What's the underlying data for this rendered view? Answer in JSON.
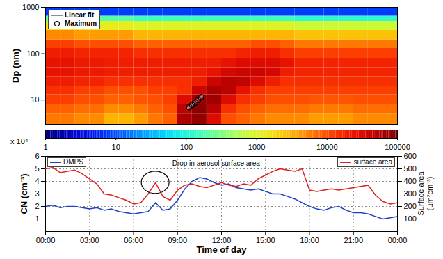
{
  "chart_data": [
    {
      "type": "heatmap",
      "ylabel": "Dp (nm)",
      "log": "y",
      "xlim": [
        0,
        24
      ],
      "ylim": [
        3,
        1000
      ],
      "yticks": [
        10,
        100,
        1000
      ],
      "tick_labels": "y",
      "legend": "top-left",
      "time_edges": [
        0,
        1,
        2,
        3,
        4,
        5,
        6,
        7,
        8,
        9,
        10,
        11,
        12,
        13,
        14,
        15,
        16,
        17,
        18,
        19,
        20,
        21,
        22,
        23,
        24
      ],
      "dp_edges": [
        3,
        5,
        8,
        13,
        20,
        32,
        50,
        80,
        130,
        200,
        320,
        500,
        650,
        1000
      ],
      "cells": [
        [
          6000,
          6000,
          5000,
          5000,
          3000,
          3000,
          4000,
          6000,
          8000,
          60000,
          80000,
          30000,
          10000,
          8000,
          6000,
          5000,
          5000,
          5000,
          4000,
          4000,
          4000,
          5000,
          5000,
          5000
        ],
        [
          8000,
          8000,
          7000,
          7000,
          5000,
          5000,
          6000,
          8000,
          10000,
          50000,
          90000,
          50000,
          15000,
          10000,
          8000,
          7000,
          7000,
          7000,
          6000,
          6000,
          6000,
          7000,
          7000,
          7000
        ],
        [
          12000,
          12000,
          10000,
          10000,
          8000,
          8000,
          9000,
          10000,
          12000,
          30000,
          70000,
          70000,
          30000,
          15000,
          12000,
          10000,
          10000,
          10000,
          9000,
          9000,
          9000,
          10000,
          10000,
          10000
        ],
        [
          15000,
          15000,
          12000,
          12000,
          10000,
          10000,
          10000,
          12000,
          12000,
          15000,
          40000,
          60000,
          50000,
          25000,
          15000,
          12000,
          12000,
          12000,
          12000,
          12000,
          12000,
          12000,
          12000,
          12000
        ],
        [
          20000,
          20000,
          18000,
          18000,
          15000,
          15000,
          15000,
          15000,
          15000,
          15000,
          20000,
          40000,
          50000,
          45000,
          30000,
          20000,
          15000,
          15000,
          15000,
          15000,
          15000,
          15000,
          15000,
          15000
        ],
        [
          25000,
          25000,
          22000,
          22000,
          20000,
          20000,
          20000,
          20000,
          20000,
          20000,
          20000,
          25000,
          35000,
          40000,
          40000,
          35000,
          20000,
          18000,
          18000,
          18000,
          18000,
          18000,
          18000,
          18000
        ],
        [
          25000,
          25000,
          22000,
          22000,
          20000,
          20000,
          20000,
          20000,
          20000,
          20000,
          20000,
          20000,
          25000,
          30000,
          30000,
          30000,
          25000,
          18000,
          18000,
          18000,
          18000,
          18000,
          18000,
          18000
        ],
        [
          20000,
          20000,
          18000,
          18000,
          18000,
          18000,
          15000,
          15000,
          15000,
          15000,
          15000,
          15000,
          15000,
          18000,
          20000,
          20000,
          15000,
          12000,
          12000,
          12000,
          12000,
          12000,
          12000,
          12000
        ],
        [
          12000,
          12000,
          10000,
          10000,
          10000,
          10000,
          8000,
          8000,
          8000,
          8000,
          8000,
          8000,
          8000,
          8000,
          10000,
          10000,
          8000,
          6000,
          6000,
          6000,
          6000,
          6000,
          6000,
          6000
        ],
        [
          5000,
          5000,
          4000,
          4000,
          4000,
          4000,
          3000,
          3000,
          3000,
          3000,
          3000,
          3000,
          3000,
          3000,
          3000,
          3000,
          3000,
          2500,
          2500,
          2500,
          2500,
          2500,
          2500,
          2500
        ],
        [
          1500,
          1500,
          1200,
          1200,
          1200,
          1200,
          1000,
          1000,
          1000,
          1000,
          1000,
          1000,
          1000,
          1000,
          1000,
          1000,
          1000,
          800,
          800,
          800,
          800,
          800,
          800,
          800
        ],
        [
          200,
          200,
          200,
          200,
          200,
          200,
          150,
          150,
          150,
          150,
          150,
          150,
          150,
          150,
          150,
          150,
          150,
          120,
          120,
          120,
          120,
          120,
          120,
          120
        ],
        [
          8,
          8,
          8,
          8,
          8,
          8,
          8,
          8,
          8,
          8,
          8,
          8,
          8,
          8,
          8,
          8,
          8,
          8,
          8,
          8,
          8,
          8,
          8,
          8
        ]
      ],
      "colorbar": {
        "range": [
          1,
          100000
        ],
        "ticks": [
          1,
          10,
          100,
          1000,
          10000,
          100000
        ]
      },
      "series": [
        {
          "name": "Linear fit",
          "type": "line",
          "color": "#8c8c8c",
          "x": [
            9.7,
            10.7
          ],
          "values": [
            6.7,
            12.2
          ]
        },
        {
          "name": "Maximum",
          "type": "scatter",
          "marker": "circle",
          "color": "#000000",
          "x": [
            9.8,
            10.0,
            10.2,
            10.4,
            10.6
          ],
          "values": [
            7,
            7.8,
            8.8,
            10,
            11.5
          ]
        }
      ]
    },
    {
      "type": "line",
      "xlabel": "Time of day",
      "ylabel": "CN (cm⁻³)",
      "y_multiplier": "x 10⁴",
      "y2label": "Surface area (µm²cm⁻³)",
      "xlim": [
        0,
        24
      ],
      "xticks": [
        {
          "value": 0,
          "label": "00:00"
        },
        {
          "value": 3,
          "label": "03:00"
        },
        {
          "value": 6,
          "label": "06:00"
        },
        {
          "value": 9,
          "label": "09:00"
        },
        {
          "value": 12,
          "label": "12:00"
        },
        {
          "value": 15,
          "label": "15:00"
        },
        {
          "value": 18,
          "label": "18:00"
        },
        {
          "value": 21,
          "label": "21:00"
        },
        {
          "value": 24,
          "label": "00:00"
        }
      ],
      "ylim": [
        0,
        6
      ],
      "yticks": [
        1,
        2,
        3,
        4,
        5,
        6
      ],
      "y2lim": [
        0,
        600
      ],
      "y2ticks": [
        100,
        200,
        300,
        400,
        500,
        600
      ],
      "grid": true,
      "legend": "top-left",
      "x": [
        0,
        0.5,
        1,
        1.5,
        2,
        2.5,
        3,
        3.5,
        4,
        4.5,
        5,
        5.5,
        6,
        6.5,
        7,
        7.5,
        8,
        8.5,
        9,
        9.5,
        10,
        10.5,
        11,
        11.5,
        12,
        12.5,
        13,
        13.5,
        14,
        14.5,
        15,
        15.5,
        16,
        16.5,
        17,
        17.5,
        18,
        18.5,
        19,
        19.5,
        20,
        20.5,
        21,
        21.5,
        22,
        22.5,
        23,
        23.5,
        24
      ],
      "series": [
        {
          "name": "DMPS",
          "color": "#1f3fc8",
          "values": [
            2.0,
            2.1,
            1.9,
            2.0,
            2.0,
            1.9,
            1.8,
            1.9,
            1.7,
            1.8,
            1.6,
            1.5,
            1.4,
            1.5,
            1.6,
            2.3,
            1.7,
            1.8,
            2.5,
            3.4,
            4.0,
            4.3,
            4.2,
            3.9,
            3.7,
            3.8,
            3.5,
            3.4,
            3.3,
            3.4,
            3.2,
            3.0,
            3.0,
            2.8,
            2.6,
            2.3,
            2.0,
            1.8,
            1.7,
            1.9,
            2.0,
            1.7,
            1.5,
            1.5,
            1.4,
            1.2,
            1.0,
            1.1,
            1.2
          ]
        },
        {
          "name": "surface area",
          "color": "#e02020",
          "axis": "y2",
          "values": [
            500,
            510,
            470,
            480,
            490,
            460,
            420,
            380,
            300,
            290,
            270,
            250,
            220,
            230,
            300,
            390,
            280,
            250,
            330,
            370,
            380,
            360,
            350,
            370,
            390,
            370,
            360,
            380,
            370,
            420,
            450,
            480,
            500,
            490,
            480,
            500,
            330,
            320,
            330,
            340,
            330,
            340,
            350,
            360,
            370,
            290,
            240,
            220,
            230
          ]
        }
      ],
      "annotations": [
        {
          "text": "Drop in aerosol surface area",
          "x": 7.5,
          "y": 390,
          "axis": "y2"
        }
      ]
    }
  ]
}
